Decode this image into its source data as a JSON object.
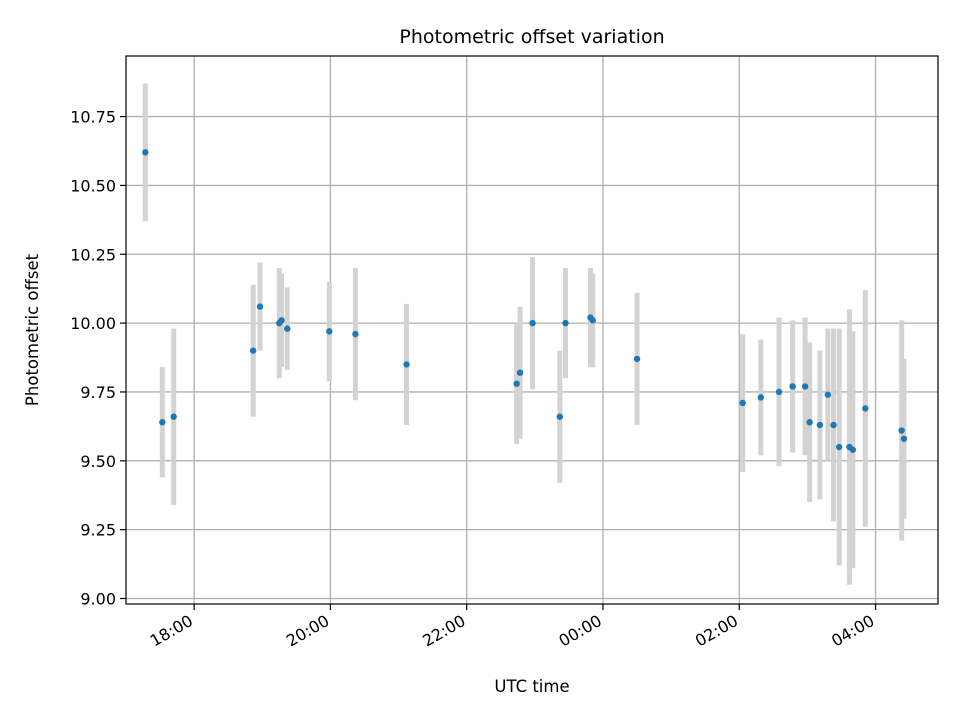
{
  "chart_data": {
    "type": "scatter",
    "title": "Photometric offset variation",
    "xlabel": "UTC time",
    "ylabel": "Photometric offset",
    "grid": true,
    "legend": "none",
    "colors": {
      "points": "#1f77b4",
      "error_bars": "#d3d3d3",
      "grid": "#b0b0b0"
    },
    "xlim": [
      "17:00",
      "04:55"
    ],
    "ylim": [
      8.98,
      10.97
    ],
    "x_ticks": [
      "18:00",
      "20:00",
      "22:00",
      "00:00",
      "02:00",
      "04:00"
    ],
    "y_ticks": [
      "9.00",
      "9.25",
      "9.50",
      "9.75",
      "10.00",
      "10.25",
      "10.50",
      "10.75"
    ],
    "points": [
      {
        "x": "17:17",
        "y": 10.62,
        "err": 0.25
      },
      {
        "x": "17:32",
        "y": 9.64,
        "err": 0.2
      },
      {
        "x": "17:42",
        "y": 9.66,
        "err": 0.32
      },
      {
        "x": "18:52",
        "y": 9.9,
        "err": 0.24
      },
      {
        "x": "18:58",
        "y": 10.06,
        "err": 0.16
      },
      {
        "x": "19:15",
        "y": 10.0,
        "err": 0.2
      },
      {
        "x": "19:17",
        "y": 10.01,
        "err": 0.17
      },
      {
        "x": "19:22",
        "y": 9.98,
        "err": 0.15
      },
      {
        "x": "19:59",
        "y": 9.97,
        "err": 0.18
      },
      {
        "x": "20:22",
        "y": 9.96,
        "err": 0.24
      },
      {
        "x": "21:07",
        "y": 9.85,
        "err": 0.22
      },
      {
        "x": "22:44",
        "y": 9.78,
        "err": 0.22
      },
      {
        "x": "22:47",
        "y": 9.82,
        "err": 0.24
      },
      {
        "x": "22:58",
        "y": 10.0,
        "err": 0.24
      },
      {
        "x": "23:22",
        "y": 9.66,
        "err": 0.24
      },
      {
        "x": "23:27",
        "y": 10.0,
        "err": 0.2
      },
      {
        "x": "23:49",
        "y": 10.02,
        "err": 0.18
      },
      {
        "x": "23:51",
        "y": 10.01,
        "err": 0.17
      },
      {
        "x": "00:30",
        "y": 9.87,
        "err": 0.24
      },
      {
        "x": "02:03",
        "y": 9.71,
        "err": 0.25
      },
      {
        "x": "02:19",
        "y": 9.73,
        "err": 0.21
      },
      {
        "x": "02:35",
        "y": 9.75,
        "err": 0.27
      },
      {
        "x": "02:47",
        "y": 9.77,
        "err": 0.24
      },
      {
        "x": "02:58",
        "y": 9.77,
        "err": 0.25
      },
      {
        "x": "03:02",
        "y": 9.64,
        "err": 0.29
      },
      {
        "x": "03:11",
        "y": 9.63,
        "err": 0.27
      },
      {
        "x": "03:18",
        "y": 9.74,
        "err": 0.24
      },
      {
        "x": "03:23",
        "y": 9.63,
        "err": 0.35
      },
      {
        "x": "03:28",
        "y": 9.55,
        "err": 0.43
      },
      {
        "x": "03:37",
        "y": 9.55,
        "err": 0.5
      },
      {
        "x": "03:40",
        "y": 9.54,
        "err": 0.43
      },
      {
        "x": "03:51",
        "y": 9.69,
        "err": 0.43
      },
      {
        "x": "04:23",
        "y": 9.61,
        "err": 0.4
      },
      {
        "x": "04:25",
        "y": 9.58,
        "err": 0.29
      }
    ]
  }
}
